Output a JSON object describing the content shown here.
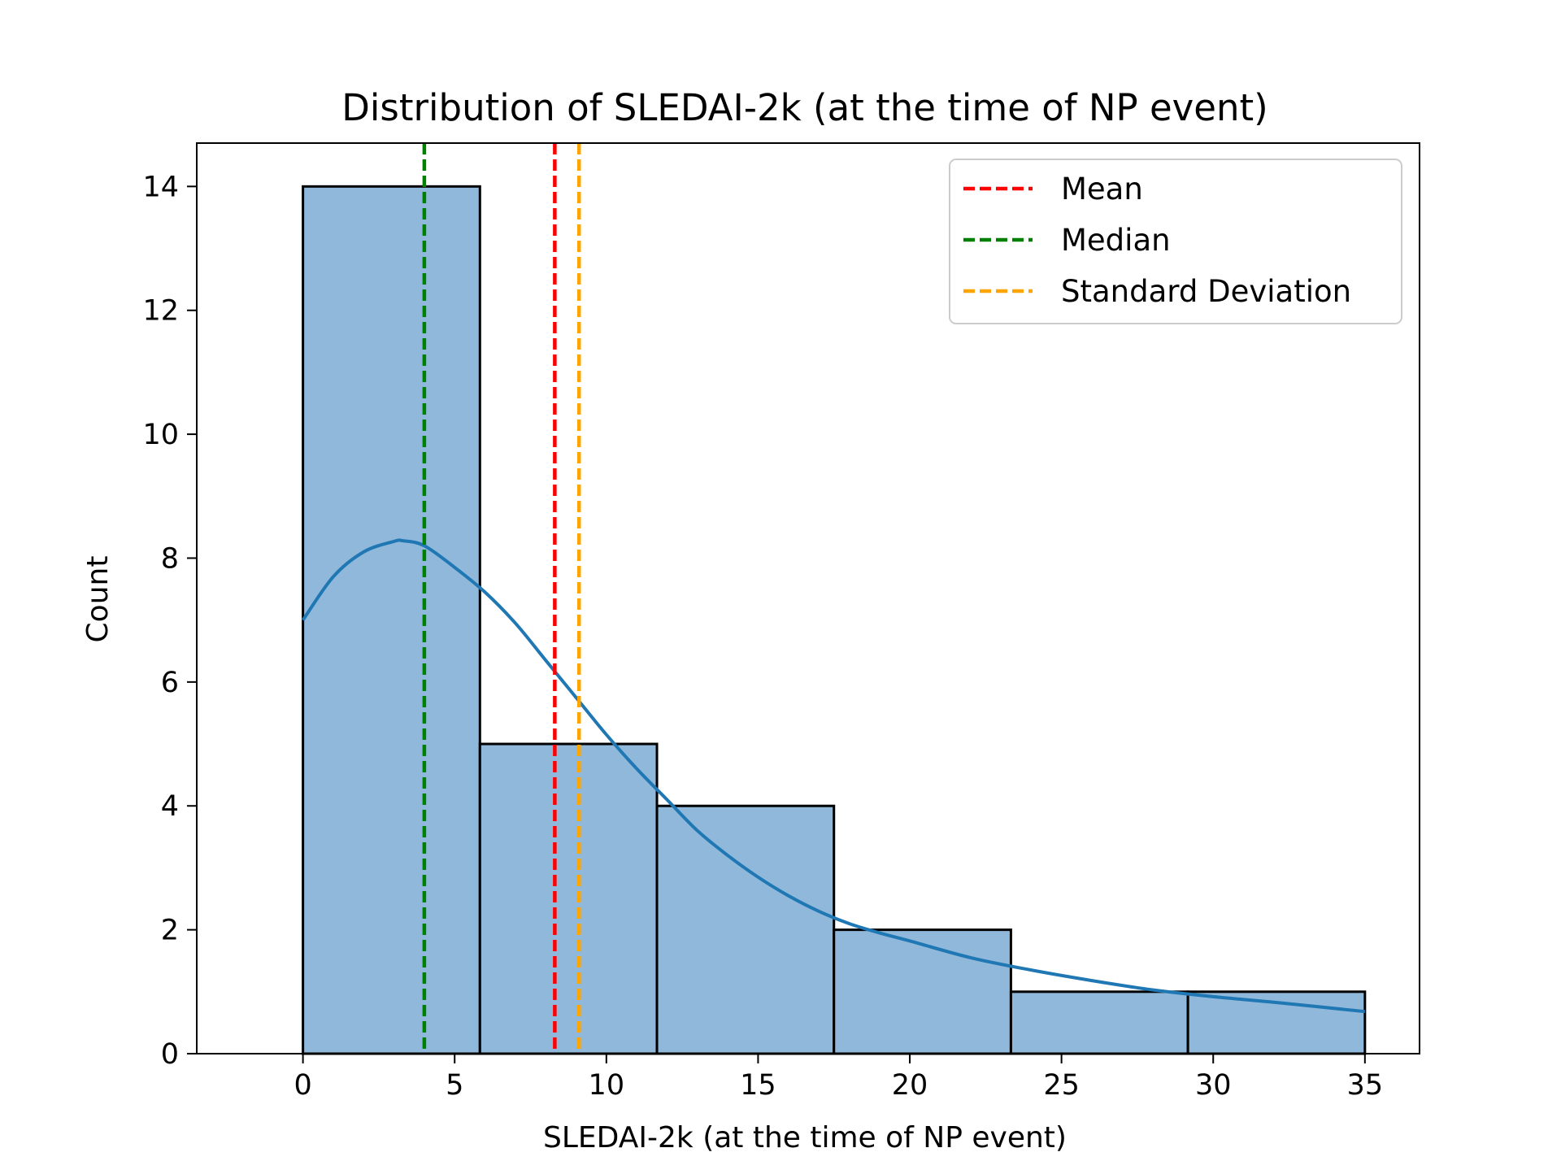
{
  "colors": {
    "bar_fill": "#8fb8da",
    "bar_edge": "#000000",
    "kde_line": "#1f77b4",
    "mean": "#ff0000",
    "median": "#008000",
    "std": "#ffa500"
  },
  "chart_data": {
    "type": "bar",
    "title": "Distribution of SLEDAI-2k (at the time of NP event)",
    "xlabel": "SLEDAI-2k (at the time of NP event)",
    "ylabel": "Count",
    "xlim": [
      -3.5,
      36.8
    ],
    "ylim": [
      0,
      14.7
    ],
    "xticks": [
      0,
      5,
      10,
      15,
      20,
      25,
      30,
      35
    ],
    "yticks": [
      0,
      2,
      4,
      6,
      8,
      10,
      12,
      14
    ],
    "grid": false,
    "legend_position": "top-right",
    "bins": [
      {
        "x0": 0.0,
        "x1": 5.833,
        "count": 14
      },
      {
        "x0": 5.833,
        "x1": 11.667,
        "count": 5
      },
      {
        "x0": 11.667,
        "x1": 17.5,
        "count": 4
      },
      {
        "x0": 17.5,
        "x1": 23.333,
        "count": 2
      },
      {
        "x0": 23.333,
        "x1": 29.167,
        "count": 1
      },
      {
        "x0": 29.167,
        "x1": 35.0,
        "count": 1
      }
    ],
    "kde": {
      "x": [
        0,
        1,
        2,
        3,
        3.3,
        4,
        5,
        6,
        7,
        8,
        9,
        10,
        11,
        12,
        13,
        14,
        15,
        16,
        17,
        18,
        19,
        20,
        22,
        24,
        26,
        28,
        30,
        32,
        35
      ],
      "y": [
        7.0,
        7.7,
        8.1,
        8.27,
        8.28,
        8.2,
        7.85,
        7.45,
        6.95,
        6.35,
        5.75,
        5.15,
        4.6,
        4.1,
        3.6,
        3.2,
        2.85,
        2.55,
        2.3,
        2.1,
        1.95,
        1.82,
        1.55,
        1.35,
        1.18,
        1.03,
        0.92,
        0.83,
        0.68
      ]
    },
    "reference_lines": [
      {
        "name": "Mean",
        "x": 8.3,
        "color": "#ff0000"
      },
      {
        "name": "Median",
        "x": 4.0,
        "color": "#008000"
      },
      {
        "name": "Standard Deviation",
        "x": 9.1,
        "color": "#ffa500"
      }
    ],
    "legend": [
      "Mean",
      "Median",
      "Standard Deviation"
    ]
  }
}
